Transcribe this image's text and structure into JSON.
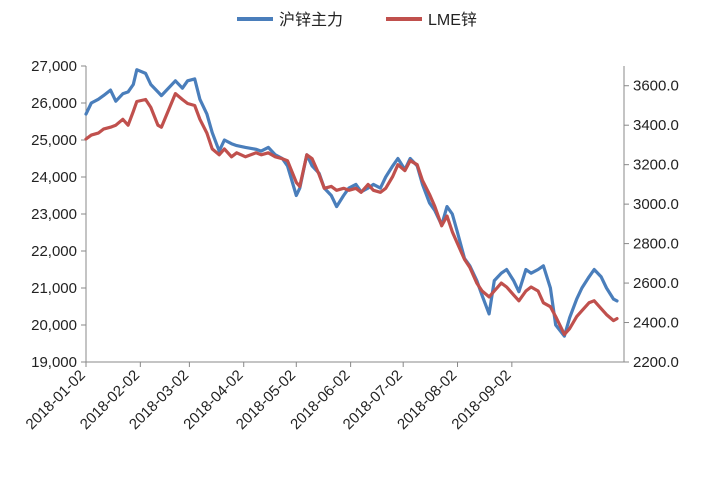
{
  "chart_data": {
    "type": "line",
    "title": "",
    "legend": {
      "placement": "top"
    },
    "grid": false,
    "x_axis": {
      "ticks": [
        "2018-01-02",
        "2018-02-02",
        "2018-03-02",
        "2018-04-02",
        "2018-05-02",
        "2018-06-02",
        "2018-07-02",
        "2018-08-02",
        "2018-09-02"
      ]
    },
    "y_left": {
      "ylim": [
        19000,
        27000
      ],
      "ticks": [
        "19,000",
        "20,000",
        "21,000",
        "22,000",
        "23,000",
        "24,000",
        "25,000",
        "26,000",
        "27,000"
      ]
    },
    "y_right": {
      "ylim": [
        2200,
        3700
      ],
      "ticks": [
        "2200.0",
        "2400.0",
        "2600.0",
        "2800.0",
        "3000.0",
        "3200.0",
        "3400.0",
        "3600.0"
      ]
    },
    "series": [
      {
        "name": "沪锌主力",
        "axis": "left",
        "color": "#4a7ebb",
        "points": [
          [
            "2018-01-02",
            25700
          ],
          [
            "2018-01-05",
            26000
          ],
          [
            "2018-01-09",
            26100
          ],
          [
            "2018-01-12",
            26200
          ],
          [
            "2018-01-16",
            26350
          ],
          [
            "2018-01-19",
            26050
          ],
          [
            "2018-01-23",
            26250
          ],
          [
            "2018-01-26",
            26300
          ],
          [
            "2018-01-29",
            26500
          ],
          [
            "2018-01-31",
            26900
          ],
          [
            "2018-02-05",
            26800
          ],
          [
            "2018-02-08",
            26500
          ],
          [
            "2018-02-12",
            26300
          ],
          [
            "2018-02-14",
            26200
          ],
          [
            "2018-02-22",
            26600
          ],
          [
            "2018-02-26",
            26400
          ],
          [
            "2018-03-01",
            26600
          ],
          [
            "2018-03-05",
            26650
          ],
          [
            "2018-03-08",
            26100
          ],
          [
            "2018-03-12",
            25700
          ],
          [
            "2018-03-15",
            25200
          ],
          [
            "2018-03-19",
            24700
          ],
          [
            "2018-03-22",
            25000
          ],
          [
            "2018-03-26",
            24900
          ],
          [
            "2018-03-29",
            24850
          ],
          [
            "2018-04-03",
            24800
          ],
          [
            "2018-04-09",
            24750
          ],
          [
            "2018-04-12",
            24700
          ],
          [
            "2018-04-16",
            24800
          ],
          [
            "2018-04-20",
            24600
          ],
          [
            "2018-04-24",
            24500
          ],
          [
            "2018-04-27",
            24300
          ],
          [
            "2018-05-02",
            23500
          ],
          [
            "2018-05-04",
            23700
          ],
          [
            "2018-05-08",
            24600
          ],
          [
            "2018-05-11",
            24300
          ],
          [
            "2018-05-15",
            24100
          ],
          [
            "2018-05-18",
            23700
          ],
          [
            "2018-05-22",
            23500
          ],
          [
            "2018-05-25",
            23200
          ],
          [
            "2018-05-29",
            23500
          ],
          [
            "2018-06-01",
            23700
          ],
          [
            "2018-06-05",
            23800
          ],
          [
            "2018-06-08",
            23600
          ],
          [
            "2018-06-12",
            23700
          ],
          [
            "2018-06-15",
            23800
          ],
          [
            "2018-06-19",
            23700
          ],
          [
            "2018-06-22",
            24000
          ],
          [
            "2018-06-26",
            24300
          ],
          [
            "2018-06-29",
            24500
          ],
          [
            "2018-07-03",
            24200
          ],
          [
            "2018-07-06",
            24500
          ],
          [
            "2018-07-10",
            24300
          ],
          [
            "2018-07-13",
            23800
          ],
          [
            "2018-07-17",
            23300
          ],
          [
            "2018-07-20",
            23100
          ],
          [
            "2018-07-24",
            22700
          ],
          [
            "2018-07-27",
            23200
          ],
          [
            "2018-07-30",
            23000
          ],
          [
            "2018-08-02",
            22500
          ],
          [
            "2018-08-06",
            21800
          ],
          [
            "2018-08-09",
            21600
          ],
          [
            "2018-08-13",
            21200
          ],
          [
            "2018-08-16",
            20800
          ],
          [
            "2018-08-20",
            20300
          ],
          [
            "2018-08-23",
            21200
          ],
          [
            "2018-08-27",
            21400
          ],
          [
            "2018-08-30",
            21500
          ],
          [
            "2018-09-03",
            21200
          ],
          [
            "2018-09-06",
            20900
          ],
          [
            "2018-09-10",
            21500
          ],
          [
            "2018-09-13",
            21400
          ],
          [
            "2018-09-17",
            21500
          ],
          [
            "2018-09-20",
            21600
          ],
          [
            "2018-09-24",
            21000
          ],
          [
            "2018-09-27",
            20000
          ],
          [
            "2018-10-02",
            19700
          ],
          [
            "2018-10-05",
            20200
          ],
          [
            "2018-10-09",
            20700
          ],
          [
            "2018-10-12",
            21000
          ],
          [
            "2018-10-16",
            21300
          ],
          [
            "2018-10-19",
            21500
          ],
          [
            "2018-10-23",
            21300
          ],
          [
            "2018-10-26",
            21000
          ],
          [
            "2018-10-30",
            20700
          ],
          [
            "2018-11-01",
            20650
          ]
        ]
      },
      {
        "name": "LME锌",
        "axis": "right",
        "color": "#c0504d",
        "points": [
          [
            "2018-01-02",
            3330
          ],
          [
            "2018-01-05",
            3350
          ],
          [
            "2018-01-09",
            3360
          ],
          [
            "2018-01-12",
            3380
          ],
          [
            "2018-01-16",
            3390
          ],
          [
            "2018-01-19",
            3400
          ],
          [
            "2018-01-23",
            3430
          ],
          [
            "2018-01-26",
            3400
          ],
          [
            "2018-01-29",
            3470
          ],
          [
            "2018-01-31",
            3520
          ],
          [
            "2018-02-05",
            3530
          ],
          [
            "2018-02-08",
            3490
          ],
          [
            "2018-02-12",
            3400
          ],
          [
            "2018-02-14",
            3390
          ],
          [
            "2018-02-22",
            3560
          ],
          [
            "2018-02-26",
            3530
          ],
          [
            "2018-03-01",
            3510
          ],
          [
            "2018-03-05",
            3500
          ],
          [
            "2018-03-08",
            3430
          ],
          [
            "2018-03-12",
            3360
          ],
          [
            "2018-03-15",
            3280
          ],
          [
            "2018-03-19",
            3250
          ],
          [
            "2018-03-22",
            3280
          ],
          [
            "2018-03-26",
            3240
          ],
          [
            "2018-03-29",
            3260
          ],
          [
            "2018-04-03",
            3240
          ],
          [
            "2018-04-09",
            3260
          ],
          [
            "2018-04-12",
            3250
          ],
          [
            "2018-04-16",
            3260
          ],
          [
            "2018-04-20",
            3240
          ],
          [
            "2018-04-24",
            3230
          ],
          [
            "2018-04-27",
            3220
          ],
          [
            "2018-05-02",
            3110
          ],
          [
            "2018-05-04",
            3090
          ],
          [
            "2018-05-08",
            3250
          ],
          [
            "2018-05-11",
            3230
          ],
          [
            "2018-05-15",
            3150
          ],
          [
            "2018-05-18",
            3080
          ],
          [
            "2018-05-22",
            3090
          ],
          [
            "2018-05-25",
            3070
          ],
          [
            "2018-05-29",
            3080
          ],
          [
            "2018-06-01",
            3070
          ],
          [
            "2018-06-05",
            3080
          ],
          [
            "2018-06-08",
            3060
          ],
          [
            "2018-06-12",
            3100
          ],
          [
            "2018-06-15",
            3070
          ],
          [
            "2018-06-19",
            3060
          ],
          [
            "2018-06-22",
            3080
          ],
          [
            "2018-06-26",
            3140
          ],
          [
            "2018-06-29",
            3200
          ],
          [
            "2018-07-03",
            3170
          ],
          [
            "2018-07-06",
            3220
          ],
          [
            "2018-07-10",
            3200
          ],
          [
            "2018-07-13",
            3120
          ],
          [
            "2018-07-17",
            3050
          ],
          [
            "2018-07-20",
            2990
          ],
          [
            "2018-07-24",
            2890
          ],
          [
            "2018-07-27",
            2940
          ],
          [
            "2018-07-30",
            2860
          ],
          [
            "2018-08-02",
            2800
          ],
          [
            "2018-08-06",
            2720
          ],
          [
            "2018-08-09",
            2680
          ],
          [
            "2018-08-13",
            2600
          ],
          [
            "2018-08-16",
            2560
          ],
          [
            "2018-08-20",
            2530
          ],
          [
            "2018-08-23",
            2560
          ],
          [
            "2018-08-27",
            2600
          ],
          [
            "2018-08-30",
            2580
          ],
          [
            "2018-09-03",
            2540
          ],
          [
            "2018-09-06",
            2510
          ],
          [
            "2018-09-10",
            2560
          ],
          [
            "2018-09-13",
            2580
          ],
          [
            "2018-09-17",
            2560
          ],
          [
            "2018-09-20",
            2500
          ],
          [
            "2018-09-24",
            2480
          ],
          [
            "2018-09-27",
            2430
          ],
          [
            "2018-10-02",
            2340
          ],
          [
            "2018-10-05",
            2370
          ],
          [
            "2018-10-09",
            2430
          ],
          [
            "2018-10-12",
            2460
          ],
          [
            "2018-10-16",
            2500
          ],
          [
            "2018-10-19",
            2510
          ],
          [
            "2018-10-23",
            2470
          ],
          [
            "2018-10-26",
            2440
          ],
          [
            "2018-10-30",
            2410
          ],
          [
            "2018-11-01",
            2420
          ]
        ]
      }
    ]
  }
}
